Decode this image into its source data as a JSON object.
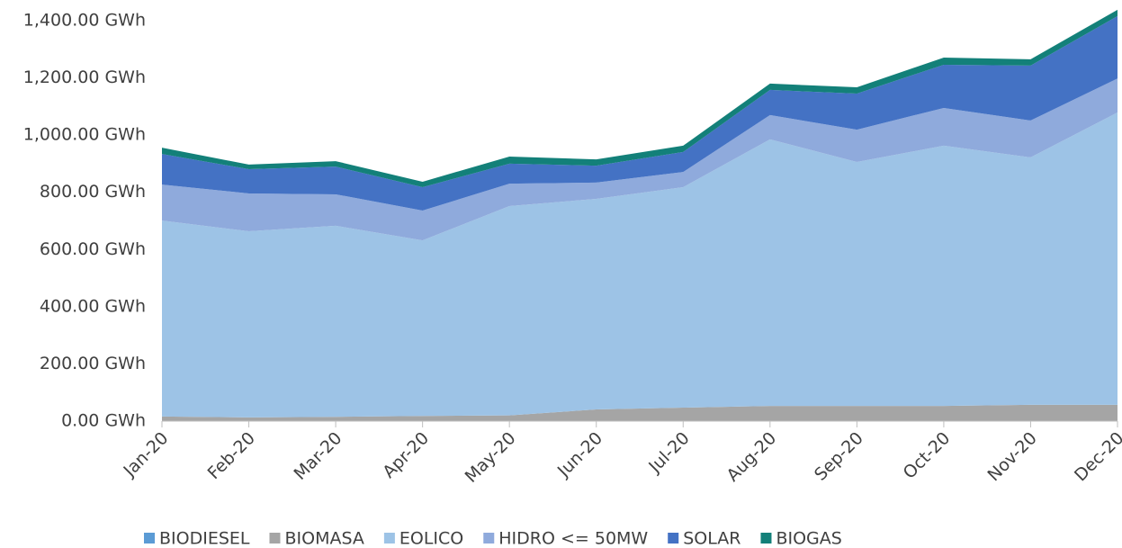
{
  "chart_data": {
    "type": "area",
    "stacked": true,
    "categories": [
      "Jan-20",
      "Feb-20",
      "Mar-20",
      "Apr-20",
      "May-20",
      "Jun-20",
      "Jul-20",
      "Aug-20",
      "Sep-20",
      "Oct-20",
      "Nov-20",
      "Dec-20"
    ],
    "series": [
      {
        "name": "BIODIESEL",
        "color": "#5b9bd5",
        "values": [
          0,
          0,
          0,
          0,
          0,
          0,
          0,
          0,
          0,
          0,
          0,
          0
        ]
      },
      {
        "name": "BIOMASA",
        "color": "#a5a5a5",
        "values": [
          16,
          13,
          15,
          18,
          20,
          41,
          47,
          53,
          53,
          53,
          57,
          57
        ]
      },
      {
        "name": "EOLICO",
        "color": "#9dc3e6",
        "values": [
          685,
          651,
          668,
          614,
          732,
          736,
          771,
          932,
          853,
          910,
          865,
          1022
        ]
      },
      {
        "name": "HIDRO <= 50MW",
        "color": "#8faadc",
        "values": [
          126,
          132,
          110,
          104,
          78,
          57,
          53,
          85,
          113,
          132,
          129,
          119
        ]
      },
      {
        "name": "SOLAR",
        "color": "#4472c4",
        "values": [
          107,
          85,
          97,
          82,
          70,
          59,
          70,
          88,
          126,
          151,
          192,
          218
        ]
      },
      {
        "name": "BIOGAS",
        "color": "#138079",
        "values": [
          22,
          16,
          19,
          19,
          25,
          22,
          22,
          22,
          22,
          25,
          22,
          22
        ]
      }
    ],
    "ylim": [
      0,
      1400
    ],
    "yticks": [
      {
        "value": 0,
        "label": "0.00 GWh"
      },
      {
        "value": 200,
        "label": "200.00 GWh"
      },
      {
        "value": 400,
        "label": "400.00 GWh"
      },
      {
        "value": 600,
        "label": "600.00 GWh"
      },
      {
        "value": 800,
        "label": "800.00 GWh"
      },
      {
        "value": 1000,
        "label": "1,000.00 GWh"
      },
      {
        "value": 1200,
        "label": "1,200.00 GWh"
      },
      {
        "value": 1400,
        "label": "1,400.00 GWh"
      }
    ],
    "legend": "bottom"
  }
}
